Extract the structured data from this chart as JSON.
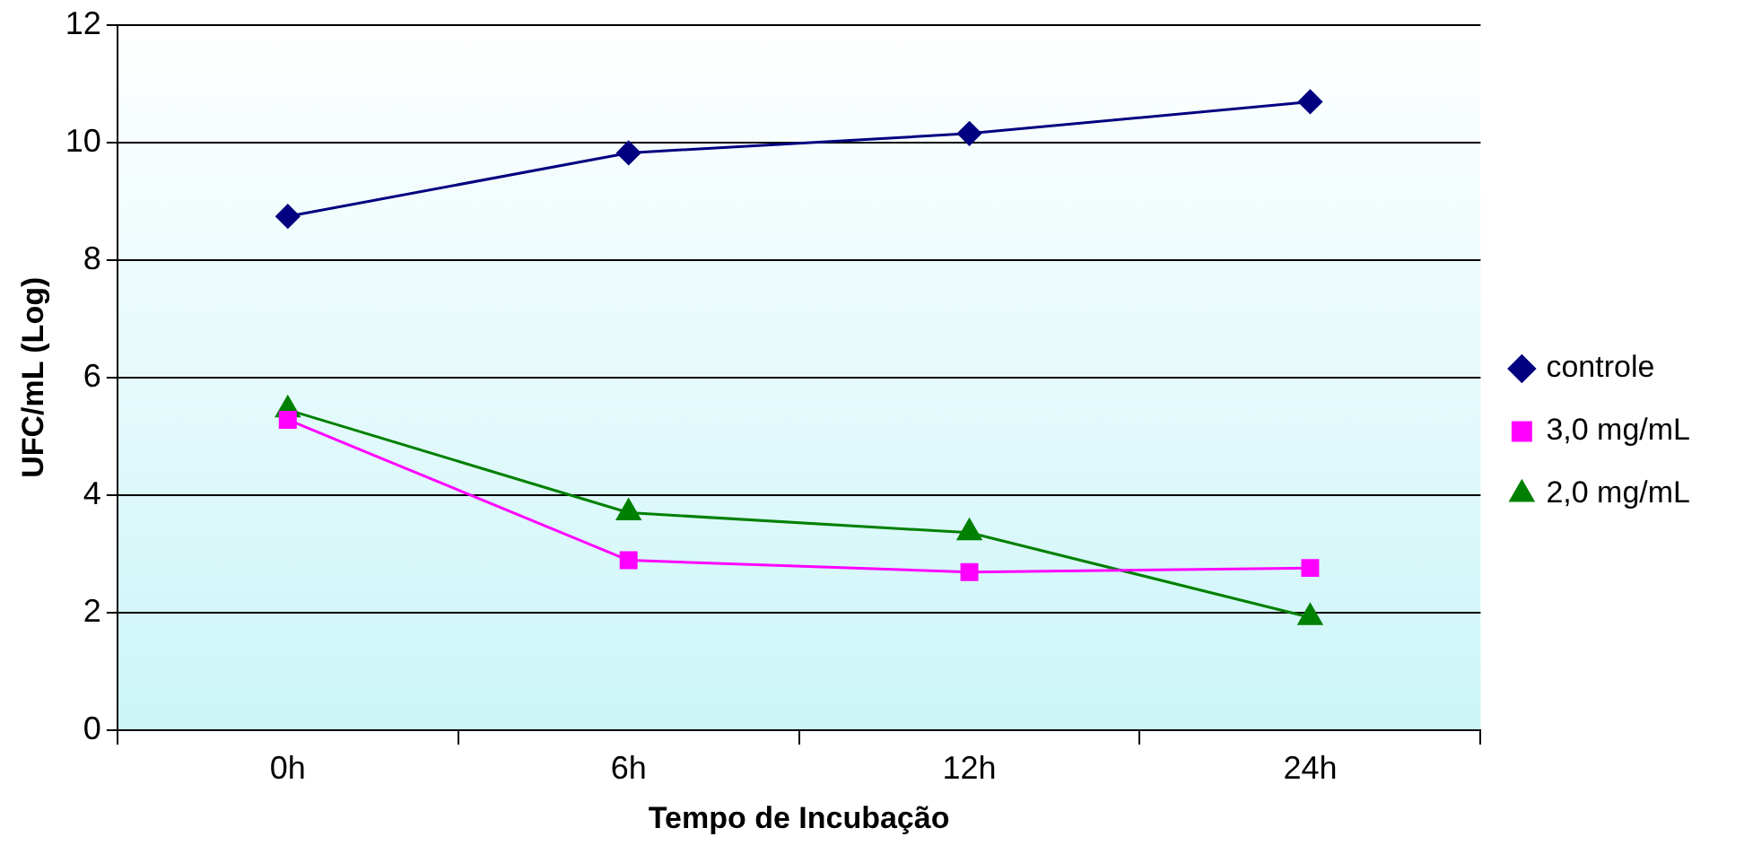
{
  "chart_data": {
    "type": "line",
    "xlabel": "Tempo de Incubação",
    "ylabel": "UFC/mL (Log)",
    "categories": [
      "0h",
      "6h",
      "12h",
      "24h"
    ],
    "ylim": [
      0,
      12
    ],
    "yticks": [
      0,
      2,
      4,
      6,
      8,
      10,
      12
    ],
    "grid": "y",
    "legend": "right",
    "line_style": "solid",
    "series": [
      {
        "name": "controle",
        "color": "#000080",
        "marker": "diamond",
        "values": [
          8.74,
          9.82,
          10.15,
          10.69
        ]
      },
      {
        "name": "3,0 mg/mL",
        "color": "#ff00ff",
        "marker": "square",
        "values": [
          5.28,
          2.89,
          2.69,
          2.76
        ]
      },
      {
        "name": "2,0 mg/mL",
        "color": "#008000",
        "marker": "triangle",
        "values": [
          5.45,
          3.7,
          3.36,
          1.92
        ]
      }
    ]
  }
}
